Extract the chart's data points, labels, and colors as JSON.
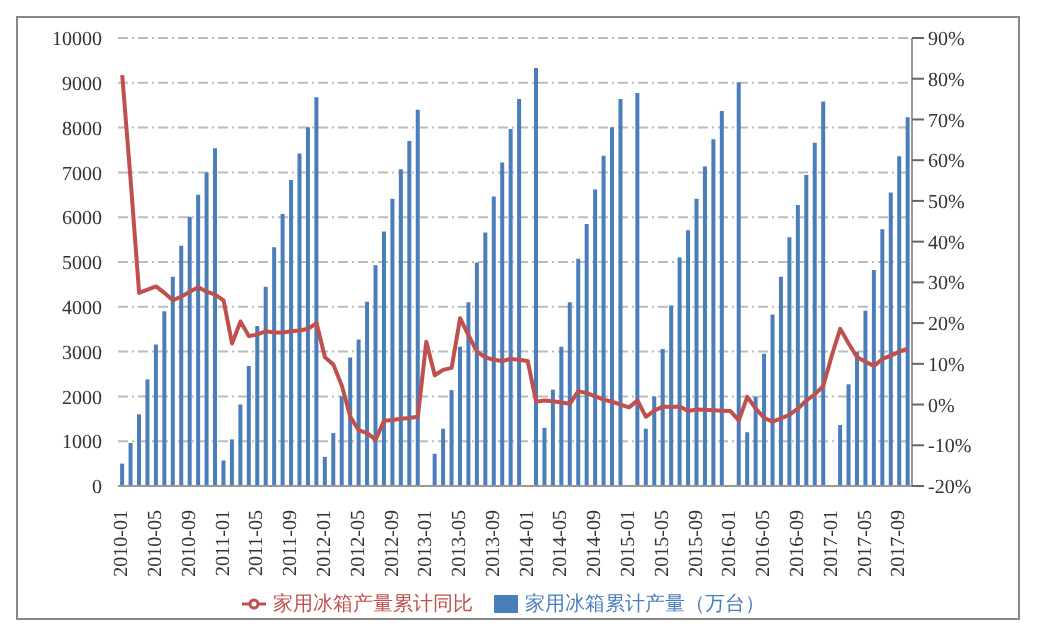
{
  "chart_data": {
    "type": "bar",
    "categories": [
      "2010-01",
      null,
      null,
      null,
      "2010-05",
      null,
      null,
      null,
      "2010-09",
      null,
      null,
      null,
      "2011-01",
      null,
      null,
      null,
      "2011-05",
      null,
      null,
      null,
      "2011-09",
      null,
      null,
      null,
      "2012-01",
      null,
      null,
      null,
      "2012-05",
      null,
      null,
      null,
      "2012-09",
      null,
      null,
      null,
      "2013-01",
      null,
      null,
      null,
      "2013-05",
      null,
      null,
      null,
      "2013-09",
      null,
      null,
      null,
      "2014-01",
      null,
      null,
      null,
      "2014-05",
      null,
      null,
      null,
      "2014-09",
      null,
      null,
      null,
      "2015-01",
      null,
      null,
      null,
      "2015-05",
      null,
      null,
      null,
      "2015-09",
      null,
      null,
      null,
      "2016-01",
      null,
      null,
      null,
      "2016-05",
      null,
      null,
      null,
      "2016-09",
      null,
      null,
      null,
      "2017-01",
      null,
      null,
      null,
      "2017-05",
      null,
      null,
      null,
      "2017-09",
      null
    ],
    "series": [
      {
        "name": "家用冰箱累计产量（万台）",
        "color": "#4a7ebb",
        "values": [
          500,
          960,
          1600,
          2380,
          3160,
          3900,
          4670,
          5360,
          6010,
          6500,
          7000,
          7540,
          570,
          1040,
          1820,
          2680,
          3570,
          4450,
          5330,
          6070,
          6830,
          7420,
          8010,
          8680,
          650,
          1180,
          2000,
          2870,
          3270,
          4110,
          4930,
          5680,
          6410,
          7070,
          7700,
          8400,
          null,
          720,
          1280,
          2140,
          3110,
          4100,
          4990,
          5660,
          6460,
          7220,
          7970,
          8640,
          null,
          9330,
          1300,
          2150,
          3110,
          4100,
          5070,
          5850,
          6620,
          7370,
          8010,
          8640,
          null,
          8770,
          1280,
          2000,
          3060,
          4030,
          5100,
          5710,
          6410,
          7130,
          7740,
          8370,
          null,
          9010,
          1200,
          2000,
          2950,
          3830,
          4670,
          5550,
          6270,
          6940,
          7660,
          8580,
          null,
          1360,
          2270,
          3000,
          3910,
          4820,
          5730,
          6550,
          7360,
          8230
        ]
      },
      {
        "name": "家用冰箱产量累计同比",
        "type": "line",
        "axis": "y2",
        "color": "#c0504d",
        "values": [
          80.9,
          55,
          27.4,
          28.2,
          29,
          27.4,
          25.6,
          26.5,
          27.7,
          28.8,
          27.7,
          27,
          25.6,
          15,
          20.4,
          16.8,
          17.2,
          18,
          17.7,
          17.7,
          18,
          18.2,
          18.6,
          20,
          11.6,
          9.8,
          4.6,
          -3,
          -6.3,
          -7,
          -8.6,
          -4,
          -3.8,
          -3.5,
          -3.3,
          -3,
          15.4,
          7.2,
          8.5,
          9,
          21.2,
          17,
          13,
          11.6,
          11,
          10.7,
          11.2,
          11,
          10.7,
          0.7,
          1,
          0.8,
          0.5,
          0.2,
          3.3,
          2.8,
          2,
          1.2,
          0.7,
          0,
          -0.7,
          1,
          -3,
          -1.5,
          -0.5,
          -0.6,
          -0.5,
          -1.6,
          -1.2,
          -1.3,
          -1.4,
          -1.5,
          -1.6,
          -3.9,
          1.9,
          -1,
          -3.3,
          -4.2,
          -3.4,
          -2.5,
          -1,
          1,
          2.5,
          4.6,
          12,
          18.6,
          15,
          11.6,
          10.5,
          9.5,
          11.2,
          12,
          13,
          13.7
        ]
      }
    ],
    "ylim": [
      0,
      10000
    ],
    "yticks": [
      0,
      1000,
      2000,
      3000,
      4000,
      5000,
      6000,
      7000,
      8000,
      9000,
      10000
    ],
    "y2lim": [
      -20,
      90
    ],
    "y2ticks": [
      {
        "value": -20,
        "label": "-20%"
      },
      {
        "value": -10,
        "label": "-10%"
      },
      {
        "value": 0,
        "label": "0%"
      },
      {
        "value": 10,
        "label": "10%"
      },
      {
        "value": 20,
        "label": "20%"
      },
      {
        "value": 30,
        "label": "30%"
      },
      {
        "value": 40,
        "label": "40%"
      },
      {
        "value": 50,
        "label": "50%"
      },
      {
        "value": 60,
        "label": "60%"
      },
      {
        "value": 70,
        "label": "70%"
      },
      {
        "value": 80,
        "label": "80%"
      },
      {
        "value": 90,
        "label": "90%"
      }
    ],
    "grid": "y",
    "legend": "bottom",
    "marker": "none",
    "line_style": "solid"
  }
}
